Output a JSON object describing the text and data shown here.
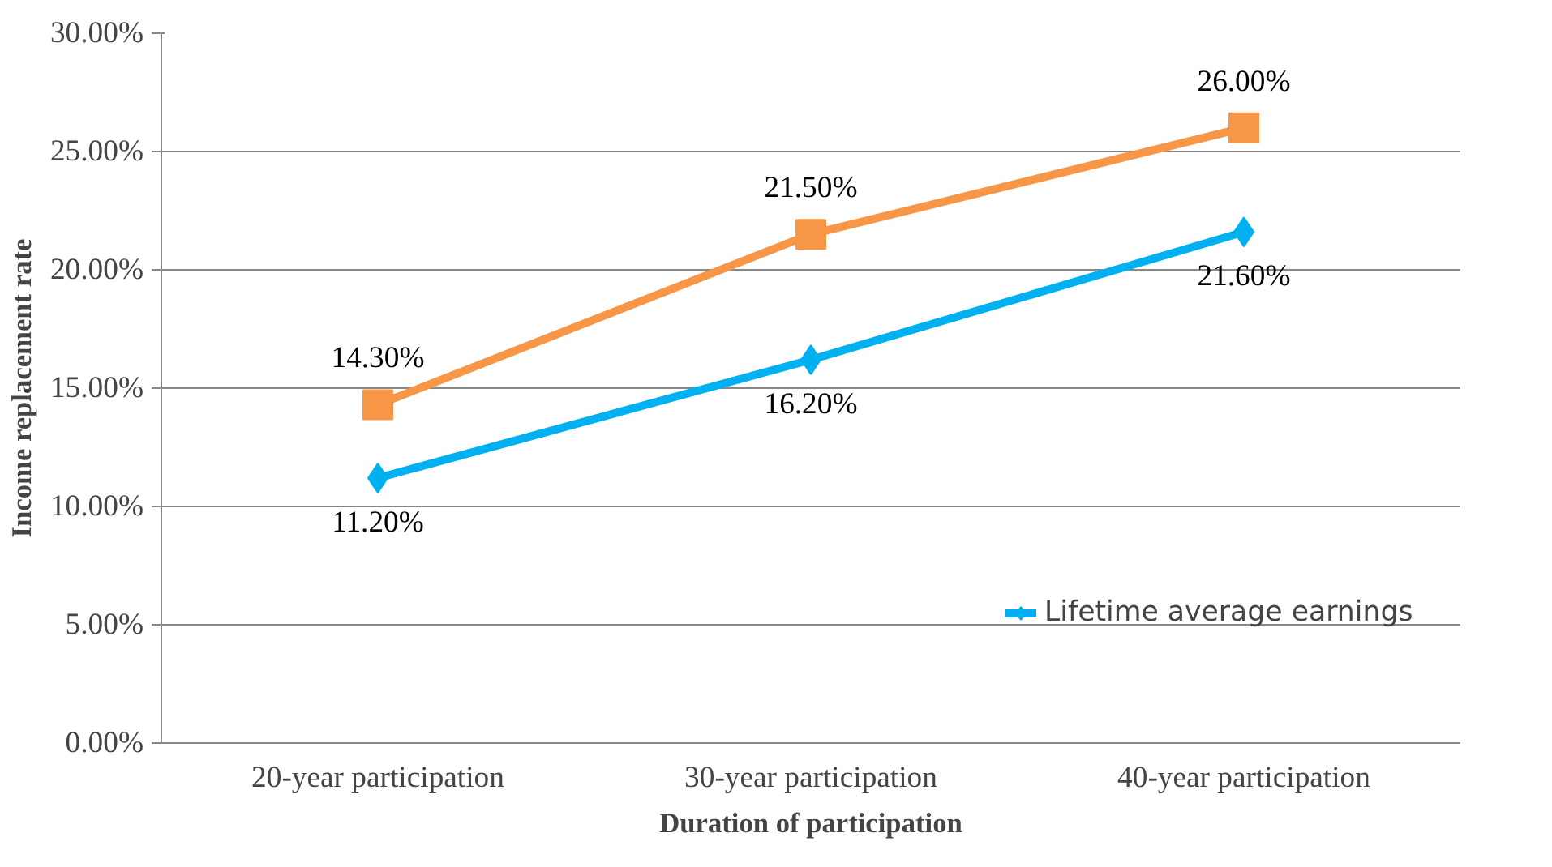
{
  "chart_data": {
    "type": "line",
    "xlabel": "Duration of participation",
    "ylabel": "Income replacement rate",
    "categories": [
      "20-year participation",
      "30-year participation",
      "40-year participation"
    ],
    "series": [
      {
        "name": "Lifetime average earnings",
        "color": "#00b0f0",
        "marker": "diamond",
        "values": [
          11.2,
          16.2,
          21.6
        ],
        "value_labels": [
          "11.20%",
          "16.20%",
          "21.60%"
        ]
      },
      {
        "color": "#f79646",
        "marker": "square",
        "values": [
          14.3,
          21.5,
          26.0
        ],
        "value_labels": [
          "14.30%",
          "21.50%",
          "26.00%"
        ]
      }
    ],
    "ylim": [
      0,
      30
    ],
    "yticks": [
      {
        "value": 0,
        "label": "0.00%"
      },
      {
        "value": 5,
        "label": "5.00%"
      },
      {
        "value": 10,
        "label": "10.00%"
      },
      {
        "value": 15,
        "label": "15.00%"
      },
      {
        "value": 20,
        "label": "20.00%"
      },
      {
        "value": 25,
        "label": "25.00%"
      },
      {
        "value": 30,
        "label": "30.00%"
      }
    ],
    "grid": "y",
    "legend": "right"
  }
}
